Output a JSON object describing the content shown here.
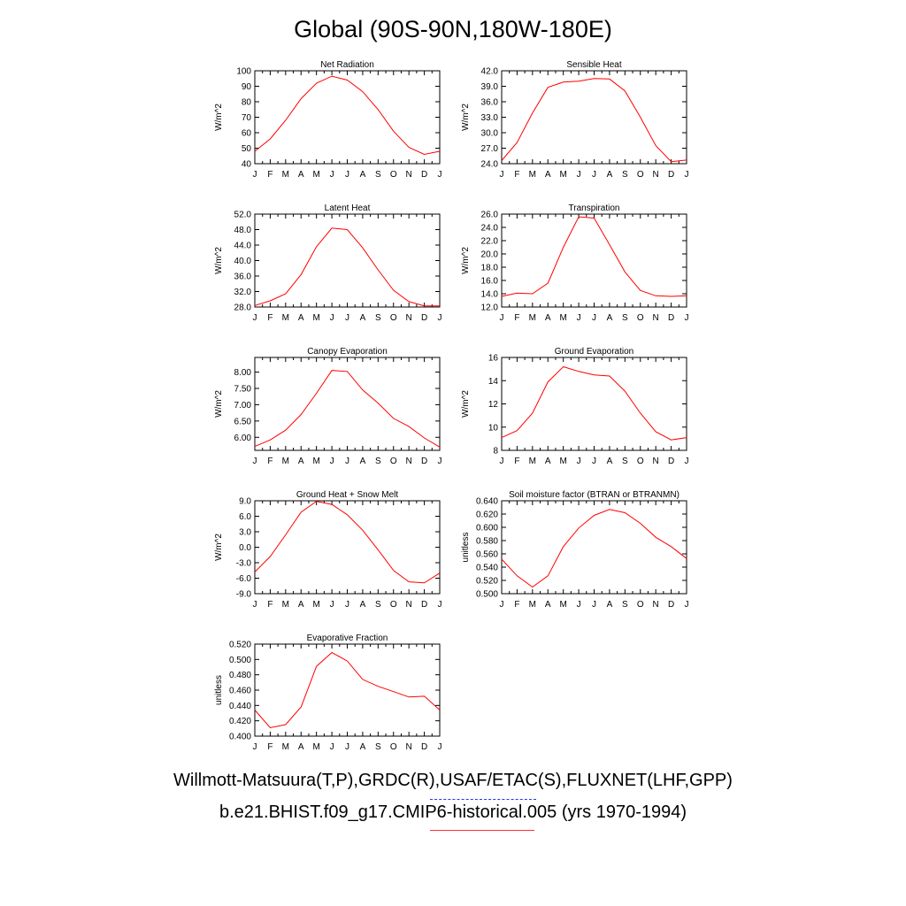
{
  "page_title": "Global (90S-90N,180W-180E)",
  "footer": {
    "obs_label": "Willmott-Matsuura(T,P),GRDC(R),USAF/ETAC(S),FLUXNET(LHF,GPP)",
    "model_label": "b.e21.BHIST.f09_g17.CMIP6-historical.005 (yrs 1970-1994)",
    "obs_color": "#2233ff",
    "model_color": "#ff3333"
  },
  "chart_data": [
    {
      "type": "line",
      "title": "Net Radiation",
      "ylabel": "W/m^2",
      "categories": [
        "J",
        "F",
        "M",
        "A",
        "M",
        "J",
        "J",
        "A",
        "S",
        "O",
        "N",
        "D",
        "J"
      ],
      "ylim": [
        40,
        100
      ],
      "yticks": [
        "40",
        "50",
        "60",
        "70",
        "80",
        "90",
        "100"
      ],
      "series": [
        {
          "color": "#ff0000",
          "values": [
            48,
            56,
            68,
            82,
            92,
            96.5,
            94,
            86.5,
            75,
            61,
            50.5,
            46,
            48
          ]
        }
      ]
    },
    {
      "type": "line",
      "title": "Sensible Heat",
      "ylabel": "W/m^2",
      "categories": [
        "J",
        "F",
        "M",
        "A",
        "M",
        "J",
        "J",
        "A",
        "S",
        "O",
        "N",
        "D",
        "J"
      ],
      "ylim": [
        24.0,
        42.0
      ],
      "yticks": [
        "24.0",
        "27.0",
        "30.0",
        "33.0",
        "36.0",
        "39.0",
        "42.0"
      ],
      "series": [
        {
          "color": "#ff0000",
          "values": [
            24.6,
            28.1,
            33.8,
            38.8,
            39.8,
            40.0,
            40.5,
            40.4,
            38.1,
            33.0,
            27.5,
            24.4,
            24.7
          ]
        }
      ]
    },
    {
      "type": "line",
      "title": "Latent Heat",
      "ylabel": "W/m^2",
      "categories": [
        "J",
        "F",
        "M",
        "A",
        "M",
        "J",
        "J",
        "A",
        "S",
        "O",
        "N",
        "D",
        "J"
      ],
      "ylim": [
        28.0,
        52.0
      ],
      "yticks": [
        "28.0",
        "32.0",
        "36.0",
        "40.0",
        "44.0",
        "48.0",
        "52.0"
      ],
      "series": [
        {
          "color": "#ff0000",
          "values": [
            28.4,
            29.6,
            31.4,
            36.4,
            43.6,
            48.4,
            48.0,
            43.3,
            37.6,
            32.3,
            29.4,
            28.3,
            28.3
          ]
        }
      ]
    },
    {
      "type": "line",
      "title": "Transpiration",
      "ylabel": "W/m^2",
      "categories": [
        "J",
        "F",
        "M",
        "A",
        "M",
        "J",
        "J",
        "A",
        "S",
        "O",
        "N",
        "D",
        "J"
      ],
      "ylim": [
        12.0,
        26.0
      ],
      "yticks": [
        "12.0",
        "14.0",
        "16.0",
        "18.0",
        "20.0",
        "22.0",
        "24.0",
        "26.0"
      ],
      "series": [
        {
          "color": "#ff0000",
          "values": [
            13.6,
            14.1,
            14.0,
            15.6,
            21.0,
            25.6,
            25.4,
            21.4,
            17.3,
            14.5,
            13.7,
            13.6,
            13.7
          ]
        }
      ]
    },
    {
      "type": "line",
      "title": "Canopy Evaporation",
      "ylabel": "W/m^2",
      "categories": [
        "J",
        "F",
        "M",
        "A",
        "M",
        "J",
        "J",
        "A",
        "S",
        "O",
        "N",
        "D",
        "J"
      ],
      "ylim": [
        5.6,
        8.45
      ],
      "yticks": [
        "6.00",
        "6.50",
        "7.00",
        "7.50",
        "8.00"
      ],
      "series": [
        {
          "color": "#ff0000",
          "values": [
            5.72,
            5.92,
            6.22,
            6.7,
            7.35,
            8.05,
            8.02,
            7.45,
            7.05,
            6.58,
            6.33,
            5.98,
            5.7
          ]
        }
      ]
    },
    {
      "type": "line",
      "title": "Ground Evaporation",
      "ylabel": "W/m^2",
      "categories": [
        "J",
        "F",
        "M",
        "A",
        "M",
        "J",
        "J",
        "A",
        "S",
        "O",
        "N",
        "D",
        "J"
      ],
      "ylim": [
        8,
        16
      ],
      "yticks": [
        "8",
        "10",
        "12",
        "14",
        "16"
      ],
      "series": [
        {
          "color": "#ff0000",
          "values": [
            9.1,
            9.7,
            11.2,
            13.9,
            15.2,
            14.8,
            14.5,
            14.4,
            13.1,
            11.2,
            9.6,
            8.9,
            9.1
          ]
        }
      ]
    },
    {
      "type": "line",
      "title": "Ground Heat + Snow Melt",
      "ylabel": "W/m^2",
      "categories": [
        "J",
        "F",
        "M",
        "A",
        "M",
        "J",
        "J",
        "A",
        "S",
        "O",
        "N",
        "D",
        "J"
      ],
      "ylim": [
        -9.0,
        9.0
      ],
      "yticks": [
        "-9.0",
        "-6.0",
        "-3.0",
        "0.0",
        "3.0",
        "6.0",
        "9.0"
      ],
      "series": [
        {
          "color": "#ff0000",
          "values": [
            -4.8,
            -1.8,
            2.4,
            6.8,
            8.9,
            8.3,
            6.3,
            3.3,
            -0.5,
            -4.5,
            -6.7,
            -6.9,
            -5.0
          ]
        }
      ]
    },
    {
      "type": "line",
      "title": "Soil moisture factor (BTRAN or BTRANMN)",
      "ylabel": "unitless",
      "categories": [
        "J",
        "F",
        "M",
        "A",
        "M",
        "J",
        "J",
        "A",
        "S",
        "O",
        "N",
        "D",
        "J"
      ],
      "ylim": [
        0.5,
        0.64
      ],
      "yticks": [
        "0.500",
        "0.520",
        "0.540",
        "0.560",
        "0.580",
        "0.600",
        "0.620",
        "0.640"
      ],
      "series": [
        {
          "color": "#ff0000",
          "values": [
            0.552,
            0.527,
            0.51,
            0.527,
            0.571,
            0.599,
            0.618,
            0.627,
            0.622,
            0.606,
            0.585,
            0.571,
            0.553
          ]
        }
      ]
    },
    {
      "type": "line",
      "title": "Evaporative Fraction",
      "ylabel": "unitless",
      "categories": [
        "J",
        "F",
        "M",
        "A",
        "M",
        "J",
        "J",
        "A",
        "S",
        "O",
        "N",
        "D",
        "J"
      ],
      "ylim": [
        0.4,
        0.52
      ],
      "yticks": [
        "0.400",
        "0.420",
        "0.440",
        "0.460",
        "0.480",
        "0.500",
        "0.520"
      ],
      "series": [
        {
          "color": "#ff0000",
          "values": [
            0.434,
            0.411,
            0.415,
            0.438,
            0.491,
            0.509,
            0.498,
            0.474,
            0.465,
            0.458,
            0.451,
            0.452,
            0.434
          ]
        }
      ]
    }
  ]
}
